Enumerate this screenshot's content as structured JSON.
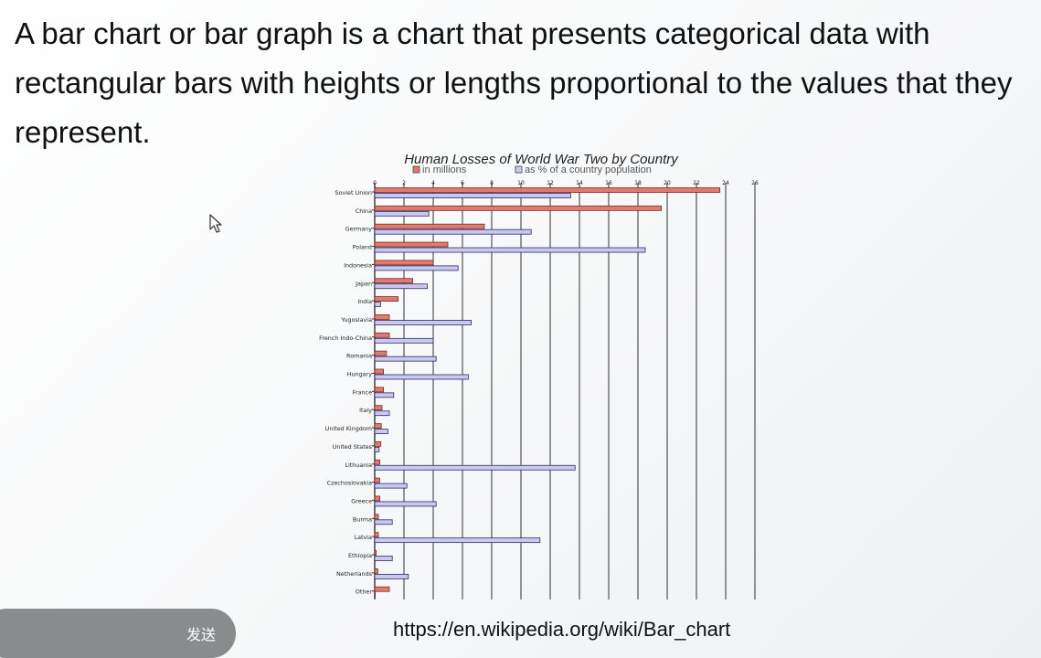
{
  "slide": {
    "text": "A bar chart or bar graph is a chart that presents categorical data with rectangular bars with heights or lengths proportional to the values that they represent.",
    "source_url": "https://en.wikipedia.org/wiki/Bar_chart"
  },
  "send_button": {
    "label": "发送"
  },
  "colors": {
    "millions": "#e07b70",
    "percent": "#c9c9ef",
    "grid": "#333333"
  },
  "chart_data": {
    "type": "bar",
    "orientation": "horizontal",
    "title": "Human Losses of World War Two by Country",
    "legend": [
      "in millions",
      "as % of a country population"
    ],
    "legend_position": "top",
    "grid": true,
    "xlim": [
      0,
      26
    ],
    "x_ticks": [
      0,
      2,
      4,
      6,
      8,
      10,
      12,
      14,
      16,
      18,
      20,
      22,
      24,
      26
    ],
    "categories": [
      "Soviet Union",
      "China",
      "Germany",
      "Poland",
      "Indonesia",
      "Japan",
      "India",
      "Yugoslavia",
      "French Indo-China",
      "Romania",
      "Hungary",
      "France",
      "Italy",
      "United Kingdom",
      "United States",
      "Lithuania",
      "Czechoslovakia",
      "Greece",
      "Burma",
      "Latvia",
      "Ethiopia",
      "Netherlands",
      "Other"
    ],
    "series": [
      {
        "name": "in millions",
        "values": [
          23.6,
          19.6,
          7.5,
          5.0,
          4.0,
          2.6,
          1.6,
          1.0,
          1.0,
          0.8,
          0.6,
          0.6,
          0.5,
          0.45,
          0.42,
          0.35,
          0.34,
          0.35,
          0.25,
          0.25,
          0.1,
          0.21,
          1.0
        ]
      },
      {
        "name": "as % of a country population",
        "values": [
          13.4,
          3.7,
          10.7,
          18.5,
          5.7,
          3.6,
          0.4,
          6.6,
          4.0,
          4.2,
          6.4,
          1.3,
          1.0,
          0.9,
          0.3,
          13.7,
          2.2,
          4.2,
          1.2,
          11.3,
          1.2,
          2.3,
          0
        ]
      }
    ]
  }
}
